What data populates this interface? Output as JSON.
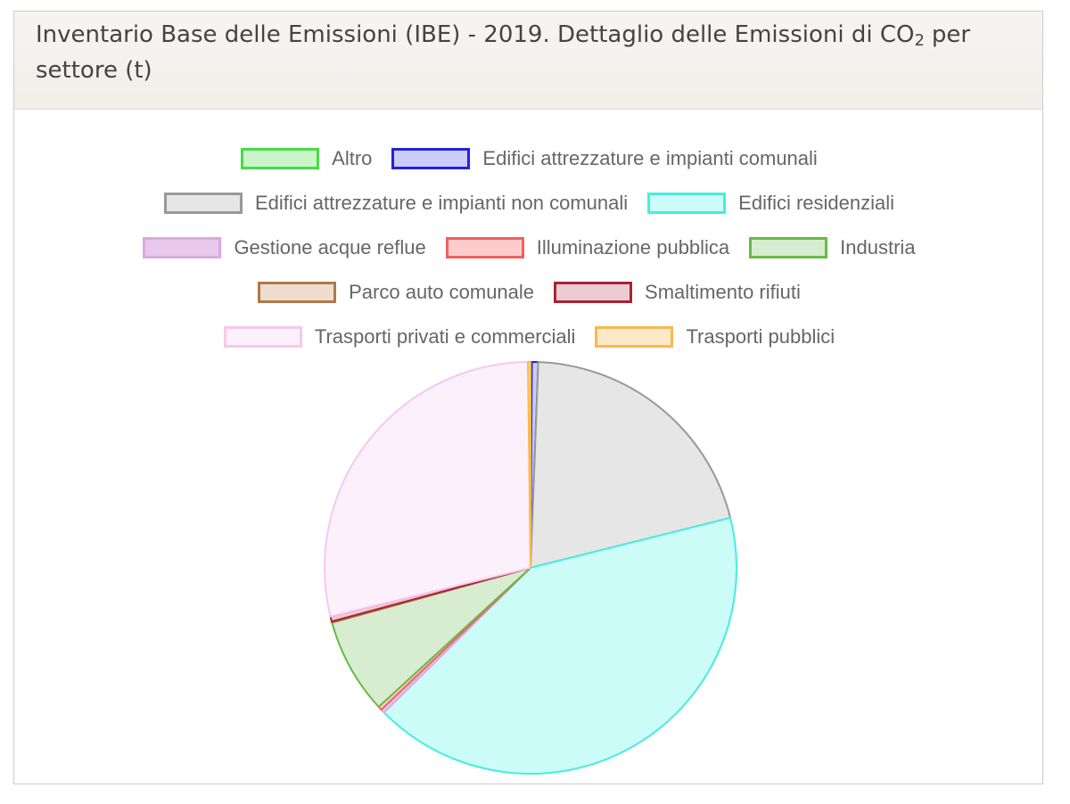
{
  "chart_data": {
    "type": "pie",
    "title": "Inventario Base delle Emissioni (IBE) - 2019. Dettaglio delle Emissioni di CO",
    "title_subscript": "2",
    "title_end": "per settore (t)",
    "categories": [
      "Altro",
      "Edifici attrezzature e impianti comunali",
      "Edifici attrezzature e impianti non comunali",
      "Edifici residenziali",
      "Gestione acque reflue",
      "Illuminazione pubblica",
      "Industria",
      "Parco auto comunale",
      "Smaltimento rifiuti",
      "Trasporti privati e commerciali",
      "Trasporti pubblici"
    ],
    "values": [
      0.1,
      0.5,
      20.5,
      41.5,
      0.3,
      0.3,
      7.5,
      0.1,
      0.4,
      28.6,
      0.2
    ],
    "colors": [
      "#ccf5cc",
      "#ccccf8",
      "#e6e6e6",
      "#ccfcf8",
      "#e8c8ec",
      "#fccccc",
      "#d8ecd0",
      "#eedcce",
      "#ecccd2",
      "#fcf0fa",
      "#fde8c8"
    ],
    "border_colors": [
      "#44dd44",
      "#2222dd",
      "#999999",
      "#44eedd",
      "#dda8e0",
      "#f06060",
      "#66bb44",
      "#b07848",
      "#aa2233",
      "#f6c8ee",
      "#f8b850"
    ]
  }
}
